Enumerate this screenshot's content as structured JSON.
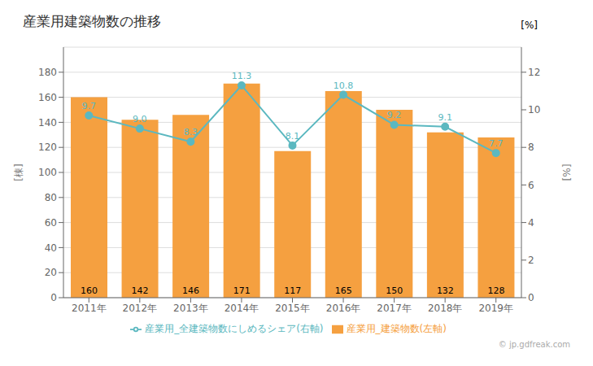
{
  "chart_data": {
    "type": "bar",
    "title": "産業用建築物数の推移",
    "categories": [
      "2011年",
      "2012年",
      "2013年",
      "2014年",
      "2015年",
      "2016年",
      "2017年",
      "2018年",
      "2019年"
    ],
    "series": [
      {
        "name": "産業用_建築物数(左軸)",
        "type": "bar",
        "color": "#F5A040",
        "values": [
          160,
          142,
          146,
          171,
          117,
          165,
          150,
          132,
          128
        ]
      },
      {
        "name": "産業用_全建築物数にしめるシェア(右軸)",
        "type": "line",
        "color": "#5BB8C0",
        "marker": "circle",
        "axis": "y2",
        "values": [
          9.7,
          9.0,
          8.3,
          11.3,
          8.1,
          10.8,
          9.2,
          9.1,
          7.7
        ],
        "value_labels": [
          "9.7",
          "9.0",
          "8.3",
          "11.3",
          "8.1",
          "10.8",
          "9.2",
          "9.1",
          "7.7"
        ]
      }
    ],
    "y_label": "[棟]",
    "y2_label": "[%]",
    "ylim": [
      0,
      200
    ],
    "yticks": [
      0,
      20,
      40,
      60,
      80,
      100,
      120,
      140,
      160,
      180
    ],
    "y2lim": [
      0,
      13.3333
    ],
    "y2ticks": [
      0,
      2,
      4,
      6,
      8,
      10,
      12
    ],
    "grid": true,
    "legend": "bottom",
    "data_labels": true,
    "annotations": [
      "[%]",
      "© jp.gdfreak.com"
    ]
  }
}
